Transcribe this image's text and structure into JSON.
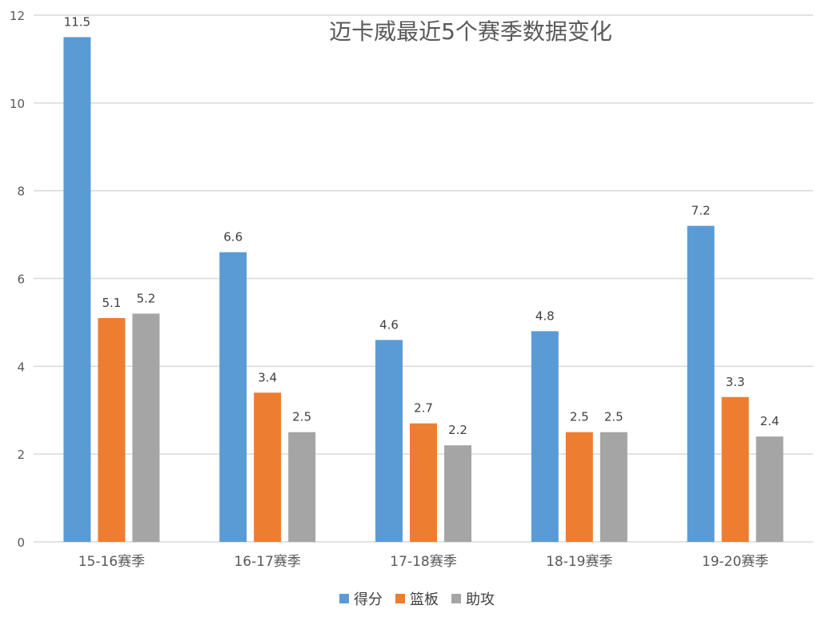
{
  "chart_data": {
    "type": "bar",
    "title": "迈卡威最近5个赛季数据变化",
    "categories": [
      "15-16赛季",
      "16-17赛季",
      "17-18赛季",
      "18-19赛季",
      "19-20赛季"
    ],
    "series": [
      {
        "name": "得分",
        "values": [
          11.5,
          6.6,
          4.6,
          4.8,
          7.2
        ],
        "color": "#5B9BD5"
      },
      {
        "name": "篮板",
        "values": [
          5.1,
          3.4,
          2.7,
          2.5,
          3.3
        ],
        "color": "#ED7D31"
      },
      {
        "name": "助攻",
        "values": [
          5.2,
          2.5,
          2.2,
          2.5,
          2.4
        ],
        "color": "#A5A5A5"
      }
    ],
    "ylim": [
      0,
      12
    ],
    "yticks": [
      "0",
      "2",
      "4",
      "6",
      "8",
      "10",
      "12"
    ],
    "grid": true,
    "legend_position": "bottom",
    "data_labels": true,
    "colors": {
      "grid": "#D9D9D9",
      "axis_text": "#595959",
      "label_text": "#404040"
    }
  }
}
